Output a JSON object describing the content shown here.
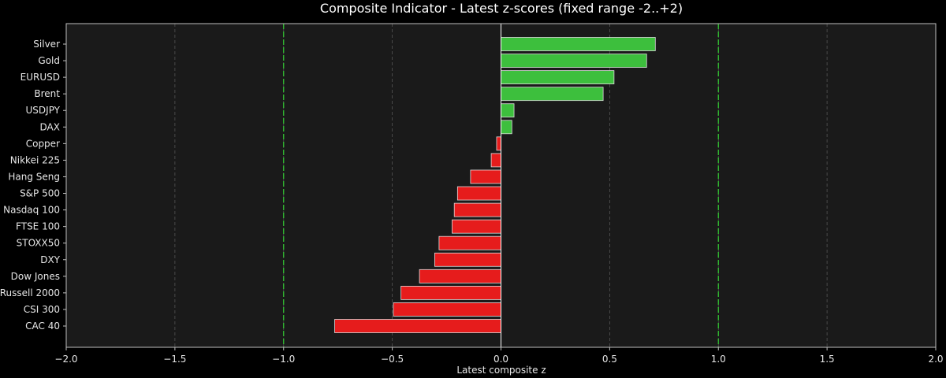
{
  "chart_data": {
    "type": "bar",
    "orientation": "horizontal",
    "title": "Composite Indicator - Latest z-scores (fixed range -2..+2)",
    "xlabel": "Latest composite z",
    "ylabel": "",
    "xlim": [
      -2.0,
      2.0
    ],
    "xticks": [
      -2.0,
      -1.5,
      -1.0,
      -0.5,
      0.0,
      0.5,
      1.0,
      1.5,
      2.0
    ],
    "xtick_labels": [
      "−2.0",
      "−1.5",
      "−1.0",
      "−0.5",
      "0.0",
      "0.5",
      "1.0",
      "1.5",
      "2.0"
    ],
    "categories": [
      "Silver",
      "Gold",
      "EURUSD",
      "Brent",
      "USDJPY",
      "DAX",
      "Copper",
      "Nikkei 225",
      "Hang Seng",
      "S&P 500",
      "Nasdaq 100",
      "FTSE 100",
      "STOXX50",
      "DXY",
      "Dow Jones",
      "Russell 2000",
      "CSI 300",
      "CAC 40"
    ],
    "values": [
      0.71,
      0.67,
      0.52,
      0.47,
      0.06,
      0.05,
      -0.02,
      -0.045,
      -0.14,
      -0.2,
      -0.215,
      -0.225,
      -0.285,
      -0.305,
      -0.375,
      -0.46,
      -0.495,
      -0.765
    ],
    "reference_lines": [
      -1.0,
      0.0,
      1.0
    ],
    "grid": true,
    "colors": {
      "positive": "#3dbf3d",
      "negative": "#e61c1c",
      "reference": "#33cc33",
      "zero": "#ffffff",
      "plot_bg": "#1a1a1a",
      "page_bg": "#000000"
    }
  }
}
